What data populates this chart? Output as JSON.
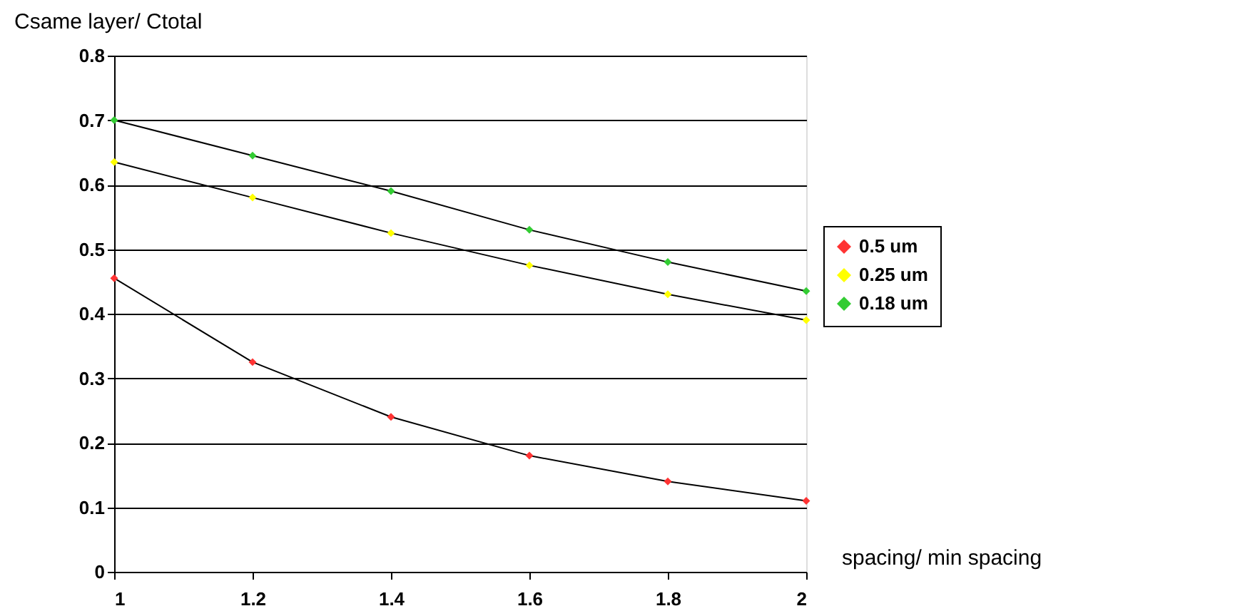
{
  "chart_data": {
    "type": "line",
    "ylabel": "Csame layer/ Ctotal",
    "xlabel": "spacing/ min spacing",
    "x": [
      1,
      1.2,
      1.4,
      1.6,
      1.8,
      2
    ],
    "series": [
      {
        "name": "0.5 um",
        "color": "#ff3333",
        "values": [
          0.455,
          0.325,
          0.24,
          0.18,
          0.14,
          0.11
        ]
      },
      {
        "name": "0.25 um",
        "color": "#ffff00",
        "values": [
          0.635,
          0.58,
          0.525,
          0.475,
          0.43,
          0.39
        ]
      },
      {
        "name": "0.18 um",
        "color": "#33cc33",
        "values": [
          0.7,
          0.645,
          0.59,
          0.53,
          0.48,
          0.435
        ]
      }
    ],
    "xlim": [
      1,
      2
    ],
    "xticks": [
      1,
      1.2,
      1.4,
      1.6,
      1.8,
      2
    ],
    "ylim": [
      0,
      0.8
    ],
    "yticks": [
      0,
      0.1,
      0.2,
      0.3,
      0.4,
      0.5,
      0.6,
      0.7,
      0.8
    ],
    "grid": "y",
    "legend": "right",
    "marker": "diamond",
    "line_style": "solid"
  }
}
